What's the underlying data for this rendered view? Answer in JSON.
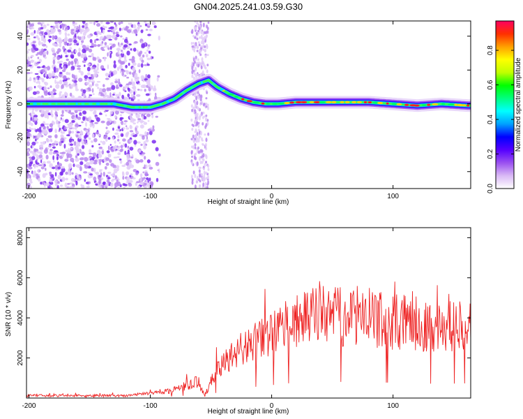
{
  "title": "GN04.2025.241.03.59.G30",
  "chart_data": [
    {
      "type": "heatmap",
      "name": "spectrogram",
      "xlabel": "Height of straight line (km)",
      "ylabel": "Frequency (Hz)",
      "xlim": [
        -202,
        164
      ],
      "ylim": [
        -50,
        49
      ],
      "xticks": [
        -200,
        -100,
        0,
        100
      ],
      "yticks": [
        -40,
        -20,
        0,
        20,
        40
      ],
      "colorbar": {
        "label": "Normalized spectral amplitude",
        "range": [
          0,
          0.97
        ],
        "ticks": [
          0.0,
          0.2,
          0.4,
          0.6,
          0.8
        ],
        "colors": [
          "#ffffff",
          "#d9b8f5",
          "#9a50f0",
          "#5500ff",
          "#0000ff",
          "#00a0ff",
          "#00ffff",
          "#00ff80",
          "#00ff00",
          "#c0ff00",
          "#ffff00",
          "#ffa000",
          "#ff3000",
          "#ff0060"
        ]
      },
      "ridge_x": [
        -200,
        -160,
        -130,
        -115,
        -100,
        -90,
        -80,
        -70,
        -60,
        -52,
        -45,
        -35,
        -25,
        -15,
        -5,
        5,
        20,
        40,
        60,
        80,
        100,
        120,
        140,
        162
      ],
      "ridge_y": [
        0,
        0,
        0,
        -2,
        -2,
        0,
        3,
        8,
        12,
        14,
        10,
        6,
        3,
        1,
        0,
        0,
        1,
        1,
        1,
        1,
        0,
        -1,
        0,
        -1
      ]
    },
    {
      "type": "line",
      "name": "snr",
      "xlabel": "Height of straight line (km)",
      "ylabel": "SNR (10 * v/v)",
      "xlim": [
        -202,
        164
      ],
      "ylim": [
        0,
        8500
      ],
      "xticks": [
        -200,
        -100,
        0,
        100
      ],
      "yticks": [
        2000,
        4000,
        6000,
        8000
      ],
      "color": "#ee2222",
      "envelope_x": [
        -202,
        -120,
        -100,
        -90,
        -80,
        -70,
        -62,
        -55,
        -45,
        -40,
        -35,
        -30,
        -20,
        -10,
        0,
        10,
        20,
        30,
        40,
        50,
        60,
        70,
        80,
        90,
        100,
        110,
        120,
        130,
        140,
        150,
        164
      ],
      "envelope_mean": [
        120,
        120,
        250,
        320,
        400,
        650,
        800,
        150,
        1400,
        1700,
        2000,
        2300,
        2600,
        2900,
        3200,
        3600,
        3800,
        4000,
        4200,
        4100,
        4000,
        4100,
        4000,
        3900,
        3800,
        3800,
        3700,
        3600,
        3500,
        3600,
        3700
      ],
      "envelope_amp": [
        60,
        60,
        80,
        120,
        160,
        250,
        300,
        80,
        500,
        600,
        700,
        800,
        900,
        1000,
        1100,
        1200,
        1300,
        1400,
        1500,
        1500,
        1500,
        1500,
        1500,
        1400,
        1400,
        1400,
        1400,
        1300,
        1300,
        1300,
        1200
      ]
    }
  ]
}
